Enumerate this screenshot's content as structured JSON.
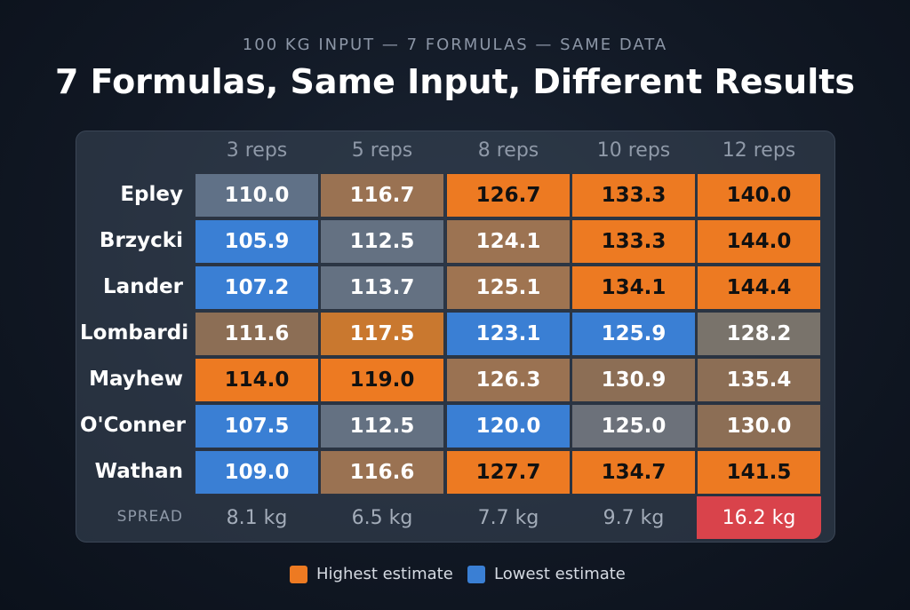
{
  "subtitle": "100 KG INPUT — 7 FORMULAS — SAME DATA",
  "title": "7 Formulas, Same Input, Different Results",
  "chart_data": {
    "type": "heatmap",
    "columns": [
      "3 reps",
      "5 reps",
      "8 reps",
      "10 reps",
      "12 reps"
    ],
    "rows": [
      {
        "name": "Epley",
        "values": [
          "110.0",
          "116.7",
          "126.7",
          "133.3",
          "140.0"
        ],
        "colors": [
          "#607187",
          "#9a7252",
          "#ed7a22",
          "#ed7a22",
          "#ed7a22"
        ]
      },
      {
        "name": "Brzycki",
        "values": [
          "105.9",
          "112.5",
          "124.1",
          "133.3",
          "144.0"
        ],
        "colors": [
          "#3a7fd4",
          "#647182",
          "#9c7352",
          "#ed7a22",
          "#ed7a22"
        ]
      },
      {
        "name": "Lander",
        "values": [
          "107.2",
          "113.7",
          "125.1",
          "134.1",
          "144.4"
        ],
        "colors": [
          "#3a7fd4",
          "#647182",
          "#9f7451",
          "#ed7a22",
          "#ed7a22"
        ]
      },
      {
        "name": "Lombardi",
        "values": [
          "111.6",
          "117.5",
          "123.1",
          "125.9",
          "128.2"
        ],
        "colors": [
          "#8c6e55",
          "#c9782f",
          "#3a7fd4",
          "#3a7fd4",
          "#79736b"
        ]
      },
      {
        "name": "Mayhew",
        "values": [
          "114.0",
          "119.0",
          "126.3",
          "130.9",
          "135.4"
        ],
        "colors": [
          "#ed7a22",
          "#ed7a22",
          "#9a7252",
          "#8c6e55",
          "#8c6e55"
        ]
      },
      {
        "name": "O'Conner",
        "values": [
          "107.5",
          "112.5",
          "120.0",
          "125.0",
          "130.0"
        ],
        "colors": [
          "#3a7fd4",
          "#647182",
          "#3a7fd4",
          "#6c717a",
          "#8c6e55"
        ]
      },
      {
        "name": "Wathan",
        "values": [
          "109.0",
          "116.6",
          "127.7",
          "134.7",
          "141.5"
        ],
        "colors": [
          "#3a7fd4",
          "#9a7252",
          "#ed7a22",
          "#ed7a22",
          "#ed7a22"
        ]
      }
    ],
    "spread_label": "SPREAD",
    "spread": [
      "8.1 kg",
      "6.5 kg",
      "7.7 kg",
      "9.7 kg",
      "16.2 kg"
    ],
    "spread_highlight_color": "#d9434b",
    "legend": [
      {
        "label": "Highest estimate",
        "color": "#ed7a22"
      },
      {
        "label": "Lowest estimate",
        "color": "#3a7fd4"
      }
    ]
  }
}
